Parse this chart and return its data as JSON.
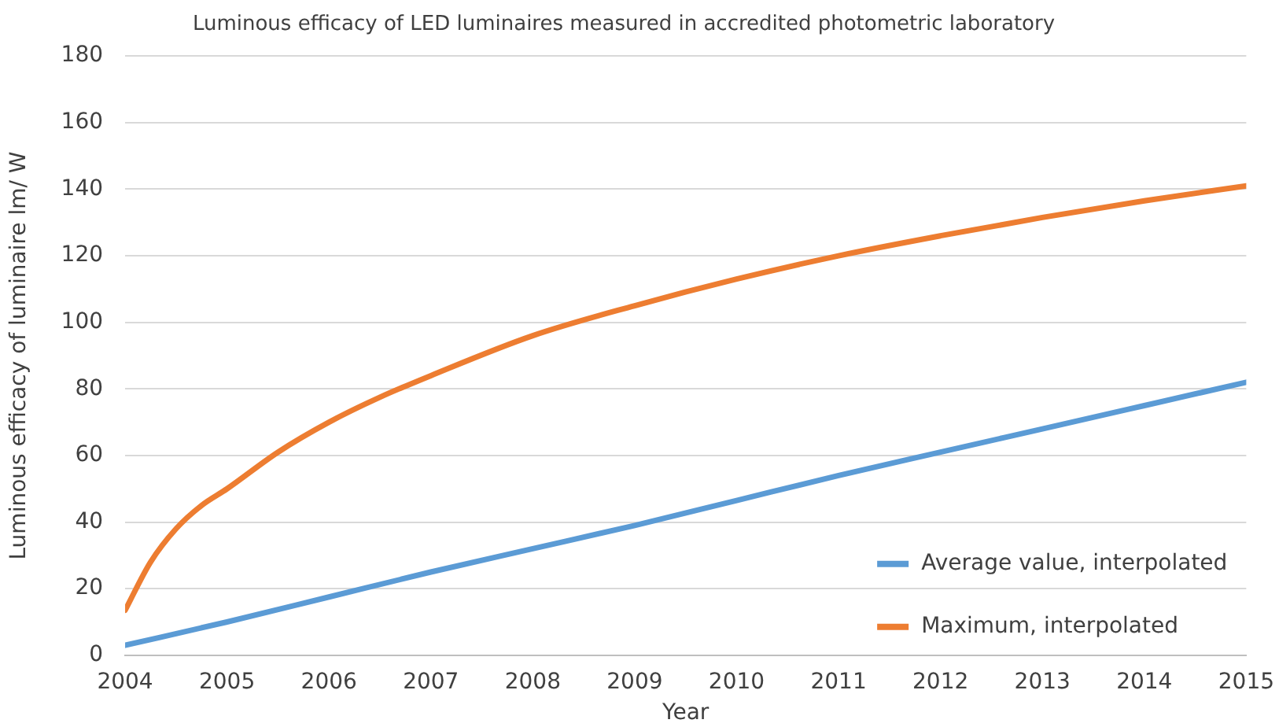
{
  "chart_data": {
    "type": "line",
    "title": "Luminous efficacy of LED luminaires measured in accredited photometric laboratory",
    "xlabel": "Year",
    "ylabel": "Luminous efficacy of luminaire lm/ W",
    "xlim": [
      2004,
      2015
    ],
    "xticks": [
      2004,
      2005,
      2006,
      2007,
      2008,
      2009,
      2010,
      2011,
      2012,
      2013,
      2014,
      2015
    ],
    "ylim": [
      0,
      180
    ],
    "yticks": [
      0,
      20,
      40,
      60,
      80,
      100,
      120,
      140,
      160,
      180
    ],
    "grid": "y",
    "legend": "bottom right",
    "marker": "none",
    "line_style": "solid",
    "series": [
      {
        "name": "Average value, interpolated",
        "color": "#5b9bd5",
        "x": [
          2004,
          2005,
          2006,
          2007,
          2008,
          2009,
          2010,
          2011,
          2012,
          2013,
          2014,
          2015
        ],
        "values": [
          3,
          10,
          17.5,
          25,
          32,
          39,
          46.5,
          54,
          61,
          68,
          75,
          82
        ]
      },
      {
        "name": "Maximum, interpolated",
        "color": "#ed7d31",
        "x": [
          2004,
          2004.25,
          2004.5,
          2004.75,
          2005,
          2005.5,
          2006,
          2006.5,
          2007,
          2008,
          2009,
          2010,
          2011,
          2012,
          2013,
          2014,
          2015
        ],
        "values": [
          13.5,
          28,
          38,
          45,
          50,
          61,
          70,
          77.5,
          84,
          96,
          105,
          113,
          120,
          126,
          131.5,
          136.5,
          141
        ]
      }
    ]
  }
}
